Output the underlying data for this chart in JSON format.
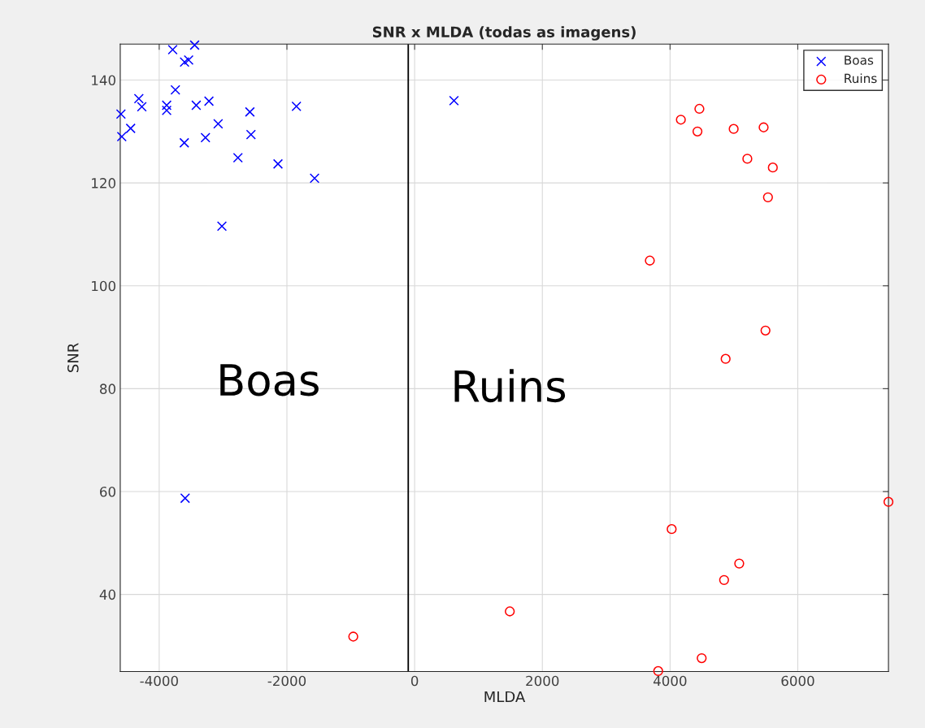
{
  "chart_data": {
    "type": "scatter",
    "title": "SNR x MLDA (todas as imagens)",
    "xlabel": "MLDA",
    "ylabel": "SNR",
    "xlim": [
      -4610,
      7420
    ],
    "ylim": [
      25,
      147
    ],
    "xticks": [
      -4000,
      -2000,
      0,
      2000,
      4000,
      6000
    ],
    "yticks": [
      40,
      60,
      80,
      100,
      120,
      140
    ],
    "grid": true,
    "legend": "top right",
    "series": [
      {
        "name": "Boas",
        "color": "#0000ff",
        "marker": "cross",
        "x": [
          -3789,
          -3445,
          -3603,
          -3539,
          -3747,
          -4319,
          -4272,
          -4599,
          -3883,
          -3883,
          -3420,
          -3221,
          -2580,
          -1851,
          -3077,
          -4447,
          -4586,
          -2563,
          -3607,
          -3276,
          -2767,
          -2140,
          -1567,
          -3018,
          -3594,
          616
        ],
        "values": [
          145.9,
          146.8,
          143.5,
          143.9,
          138.1,
          136.4,
          134.8,
          133.4,
          135.1,
          134.1,
          135.1,
          135.9,
          133.8,
          134.9,
          131.5,
          130.6,
          129.0,
          129.4,
          127.8,
          128.8,
          124.9,
          123.7,
          120.9,
          111.6,
          58.7,
          136.0
        ]
      },
      {
        "name": "Ruins",
        "color": "#ff0000",
        "marker": "circle",
        "x": [
          4459,
          4169,
          4429,
          4996,
          5465,
          5210,
          5609,
          5533,
          3683,
          5494,
          4870,
          7420,
          4025,
          5083,
          4846,
          1490,
          4495,
          3814,
          -961
        ],
        "values": [
          134.4,
          132.3,
          130.0,
          130.5,
          130.8,
          124.7,
          123.0,
          117.2,
          104.9,
          91.3,
          85.8,
          58.0,
          52.7,
          46.0,
          42.8,
          36.7,
          27.6,
          25.1,
          31.8
        ]
      }
    ],
    "ref_lines": [
      {
        "axis": "x",
        "value": -100,
        "color": "#000000",
        "line_style": "solid"
      }
    ],
    "annotations": [
      "Boas",
      "Ruins"
    ]
  }
}
